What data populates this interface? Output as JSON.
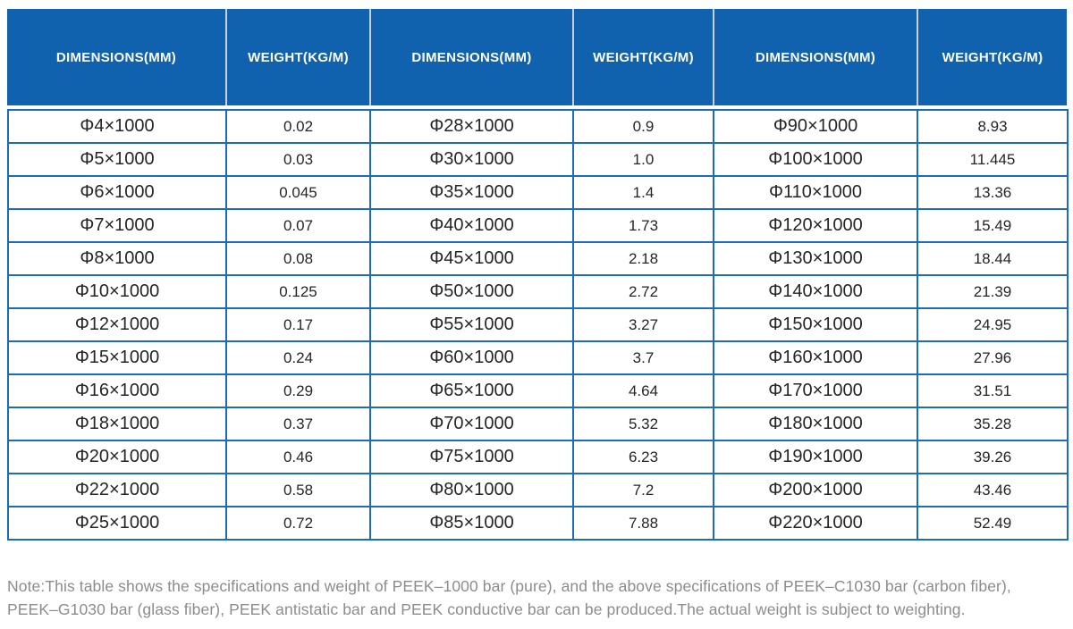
{
  "colors": {
    "header_bg": "#1062AE",
    "header_text": "#FFFFFF",
    "header_divider": "#C9D0D9",
    "body_border": "#1B6CBC",
    "cell_text": "#252525",
    "note_text": "#8C8C8C"
  },
  "table": {
    "column_headers": [
      {
        "label": "DIMENSIONS(MM)"
      },
      {
        "label": "WEIGHT(KG/M)"
      },
      {
        "label": "DIMENSIONS(MM)"
      },
      {
        "label": "WEIGHT(KG/M)"
      },
      {
        "label": "DIMENSIONS(MM)"
      },
      {
        "label": "WEIGHT(KG/M)"
      }
    ],
    "rows": [
      [
        "Φ4×1000",
        "0.02",
        "Φ28×1000",
        "0.9",
        "Φ90×1000",
        "8.93"
      ],
      [
        "Φ5×1000",
        "0.03",
        "Φ30×1000",
        "1.0",
        "Φ100×1000",
        "11.445"
      ],
      [
        "Φ6×1000",
        "0.045",
        "Φ35×1000",
        "1.4",
        "Φ110×1000",
        "13.36"
      ],
      [
        "Φ7×1000",
        "0.07",
        "Φ40×1000",
        "1.73",
        "Φ120×1000",
        "15.49"
      ],
      [
        "Φ8×1000",
        "0.08",
        "Φ45×1000",
        "2.18",
        "Φ130×1000",
        "18.44"
      ],
      [
        "Φ10×1000",
        "0.125",
        "Φ50×1000",
        "2.72",
        "Φ140×1000",
        "21.39"
      ],
      [
        "Φ12×1000",
        "0.17",
        "Φ55×1000",
        "3.27",
        "Φ150×1000",
        "24.95"
      ],
      [
        "Φ15×1000",
        "0.24",
        "Φ60×1000",
        "3.7",
        "Φ160×1000",
        "27.96"
      ],
      [
        "Φ16×1000",
        "0.29",
        "Φ65×1000",
        "4.64",
        "Φ170×1000",
        "31.51"
      ],
      [
        "Φ18×1000",
        "0.37",
        "Φ70×1000",
        "5.32",
        "Φ180×1000",
        "35.28"
      ],
      [
        "Φ20×1000",
        "0.46",
        "Φ75×1000",
        "6.23",
        "Φ190×1000",
        "39.26"
      ],
      [
        "Φ22×1000",
        "0.58",
        "Φ80×1000",
        "7.2",
        "Φ200×1000",
        "43.46"
      ],
      [
        "Φ25×1000",
        "0.72",
        "Φ85×1000",
        "7.88",
        "Φ220×1000",
        "52.49"
      ]
    ]
  },
  "note": {
    "line1": "Note:This table shows the specifications and weight of PEEK–1000 bar (pure), and the above specifications of PEEK–C1030 bar (carbon fiber),",
    "line2": "PEEK–G1030 bar (glass fiber), PEEK antistatic bar and PEEK conductive bar can be produced.The actual weight is subject to weighting."
  }
}
